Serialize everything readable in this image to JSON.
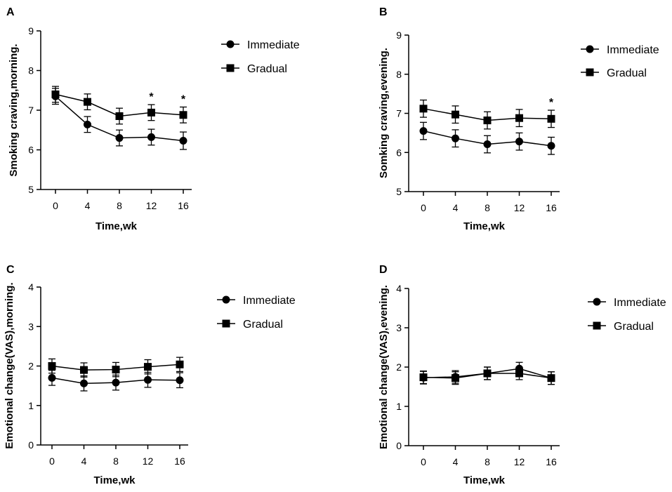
{
  "chart_data": [
    {
      "type": "line",
      "panel": "A",
      "xlabel": "Time,wk",
      "ylabel": "Smoking craving,morning.",
      "categories": [
        "0",
        "4",
        "8",
        "12",
        "16"
      ],
      "ylim": [
        5,
        9
      ],
      "yticks": [
        5,
        6,
        7,
        8,
        9
      ],
      "legend_position": "top-right",
      "series": [
        {
          "name": "Immediate",
          "marker": "circle",
          "values": [
            7.35,
            6.64,
            6.3,
            6.32,
            6.23
          ],
          "errors": [
            0.2,
            0.2,
            0.2,
            0.2,
            0.22
          ]
        },
        {
          "name": "Gradual",
          "marker": "square",
          "values": [
            7.4,
            7.21,
            6.85,
            6.94,
            6.88
          ],
          "errors": [
            0.2,
            0.2,
            0.2,
            0.2,
            0.2
          ]
        }
      ],
      "significance": [
        {
          "index": 3,
          "label": "*"
        },
        {
          "index": 4,
          "label": "*"
        }
      ]
    },
    {
      "type": "line",
      "panel": "B",
      "xlabel": "Time,wk",
      "ylabel": "Somking craving,evening.",
      "categories": [
        "0",
        "4",
        "8",
        "12",
        "16"
      ],
      "ylim": [
        5,
        9
      ],
      "yticks": [
        5,
        6,
        7,
        8,
        9
      ],
      "legend_position": "top-right",
      "series": [
        {
          "name": "Immediate",
          "marker": "circle",
          "values": [
            6.55,
            6.36,
            6.21,
            6.28,
            6.17
          ],
          "errors": [
            0.22,
            0.22,
            0.22,
            0.22,
            0.22
          ]
        },
        {
          "name": "Gradual",
          "marker": "square",
          "values": [
            7.12,
            6.97,
            6.82,
            6.88,
            6.86
          ],
          "errors": [
            0.22,
            0.22,
            0.22,
            0.22,
            0.22
          ]
        }
      ],
      "significance": [
        {
          "index": 4,
          "label": "*"
        }
      ]
    },
    {
      "type": "line",
      "panel": "C",
      "xlabel": "Time,wk",
      "ylabel": "Emotional change(VAS),morning.",
      "categories": [
        "0",
        "4",
        "8",
        "12",
        "16"
      ],
      "ylim": [
        0,
        4
      ],
      "yticks": [
        0,
        1,
        2,
        3,
        4
      ],
      "legend_position": "top-right",
      "series": [
        {
          "name": "Immediate",
          "marker": "circle",
          "values": [
            1.7,
            1.56,
            1.58,
            1.65,
            1.64
          ],
          "errors": [
            0.19,
            0.19,
            0.19,
            0.19,
            0.19
          ]
        },
        {
          "name": "Gradual",
          "marker": "square",
          "values": [
            2.0,
            1.9,
            1.91,
            1.98,
            2.04
          ],
          "errors": [
            0.18,
            0.18,
            0.18,
            0.18,
            0.18
          ]
        }
      ],
      "significance": []
    },
    {
      "type": "line",
      "panel": "D",
      "xlabel": "Time,wk",
      "ylabel": "Emotional change(VAS),evening.",
      "categories": [
        "0",
        "4",
        "8",
        "12",
        "16"
      ],
      "ylim": [
        0,
        4
      ],
      "yticks": [
        0,
        1,
        2,
        3,
        4
      ],
      "legend_position": "top-right",
      "series": [
        {
          "name": "Immediate",
          "marker": "circle",
          "values": [
            1.73,
            1.75,
            1.84,
            1.96,
            1.72
          ],
          "errors": [
            0.16,
            0.16,
            0.16,
            0.16,
            0.16
          ]
        },
        {
          "name": "Gradual",
          "marker": "square",
          "values": [
            1.74,
            1.72,
            1.84,
            1.84,
            1.72
          ],
          "errors": [
            0.16,
            0.16,
            0.16,
            0.16,
            0.16
          ]
        }
      ],
      "significance": []
    }
  ]
}
